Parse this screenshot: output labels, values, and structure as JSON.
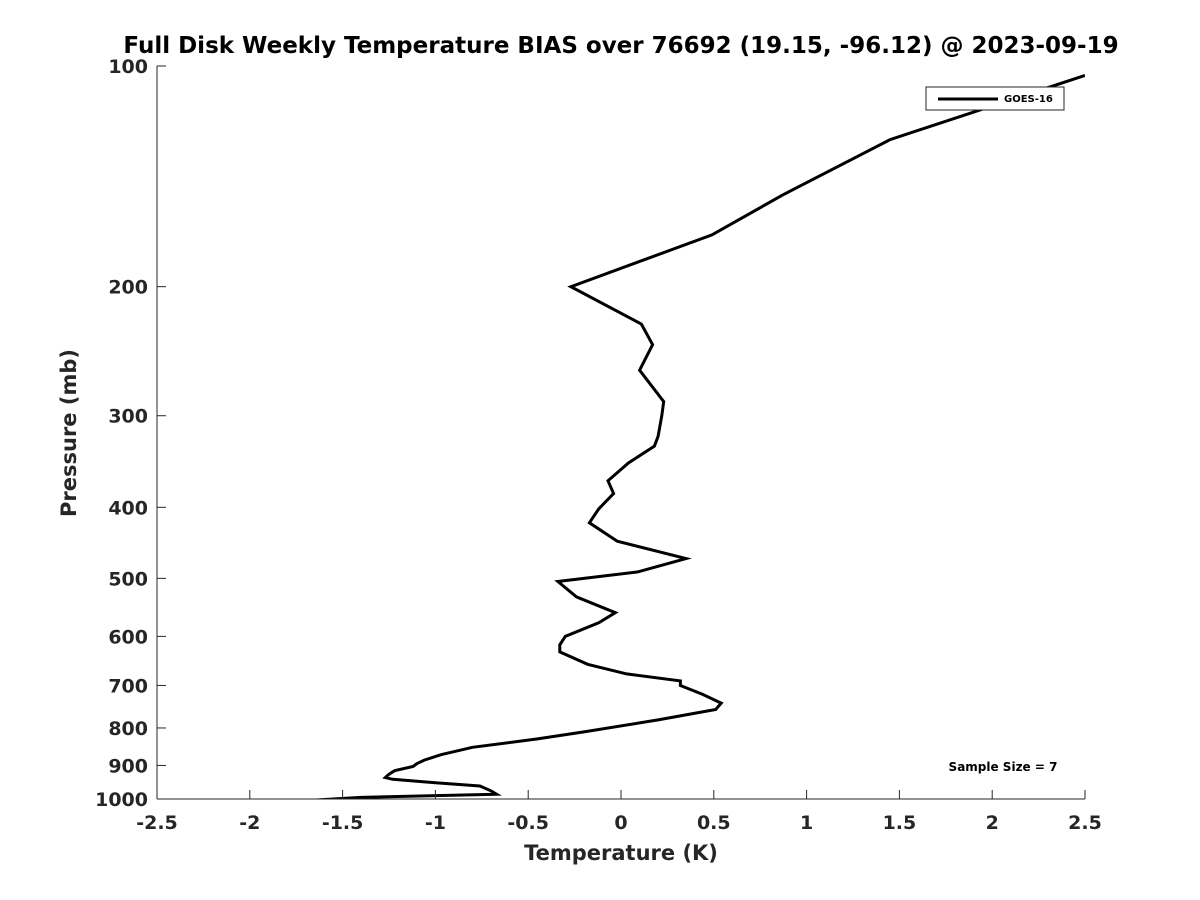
{
  "chart_data": {
    "type": "line",
    "title": "Full Disk Weekly Temperature BIAS over 76692 (19.15, -96.12) @ 2023-09-19",
    "xlabel": "Temperature (K)",
    "ylabel": "Pressure (mb)",
    "xlim": [
      -2.5,
      2.5
    ],
    "ylim": [
      100,
      1000
    ],
    "yscale": "log",
    "yreversed": true,
    "xticks": [
      -2.5,
      -2,
      -1.5,
      -1,
      -0.5,
      0,
      0.5,
      1,
      1.5,
      2,
      2.5
    ],
    "xtick_labels": [
      "-2.5",
      "-2",
      "-1.5",
      "-1",
      "-0.5",
      "0",
      "0.5",
      "1",
      "1.5",
      "2",
      "2.5"
    ],
    "yticks": [
      100,
      200,
      300,
      400,
      500,
      600,
      700,
      800,
      900,
      1000
    ],
    "ytick_labels": [
      "100",
      "200",
      "300",
      "400",
      "500",
      "600",
      "700",
      "800",
      "900",
      "1000"
    ],
    "grid": false,
    "legend_position": "top-right",
    "annotation": "Sample Size = 7",
    "series": [
      {
        "name": "GOES-16",
        "color": "#000000",
        "points": [
          [
            2.5,
            103
          ],
          [
            1.45,
            126
          ],
          [
            0.87,
            150
          ],
          [
            0.49,
            170
          ],
          [
            -0.27,
            200
          ],
          [
            0.11,
            225
          ],
          [
            0.17,
            240
          ],
          [
            0.1,
            260
          ],
          [
            0.23,
            287
          ],
          [
            0.22,
            300
          ],
          [
            0.2,
            320
          ],
          [
            0.18,
            330
          ],
          [
            0.04,
            348
          ],
          [
            -0.07,
            368
          ],
          [
            -0.04,
            383
          ],
          [
            -0.12,
            402
          ],
          [
            -0.17,
            420
          ],
          [
            -0.02,
            445
          ],
          [
            0.35,
            470
          ],
          [
            0.09,
            490
          ],
          [
            -0.34,
            505
          ],
          [
            -0.24,
            530
          ],
          [
            -0.03,
            557
          ],
          [
            -0.12,
            575
          ],
          [
            -0.3,
            600
          ],
          [
            -0.33,
            616
          ],
          [
            -0.33,
            630
          ],
          [
            -0.18,
            655
          ],
          [
            0.03,
            675
          ],
          [
            0.32,
            690
          ],
          [
            0.32,
            700
          ],
          [
            0.44,
            720
          ],
          [
            0.54,
            740
          ],
          [
            0.51,
            755
          ],
          [
            0.2,
            780
          ],
          [
            -0.2,
            810
          ],
          [
            -0.45,
            828
          ],
          [
            -0.8,
            850
          ],
          [
            -0.97,
            870
          ],
          [
            -1.06,
            885
          ],
          [
            -1.1,
            895
          ],
          [
            -1.12,
            903
          ],
          [
            -1.22,
            915
          ],
          [
            -1.25,
            925
          ],
          [
            -1.27,
            935
          ],
          [
            -1.23,
            940
          ],
          [
            -1.0,
            950
          ],
          [
            -0.76,
            960
          ],
          [
            -0.7,
            975
          ],
          [
            -0.67,
            985
          ],
          [
            -1.4,
            995
          ],
          [
            -1.7,
            1005
          ]
        ]
      }
    ]
  }
}
